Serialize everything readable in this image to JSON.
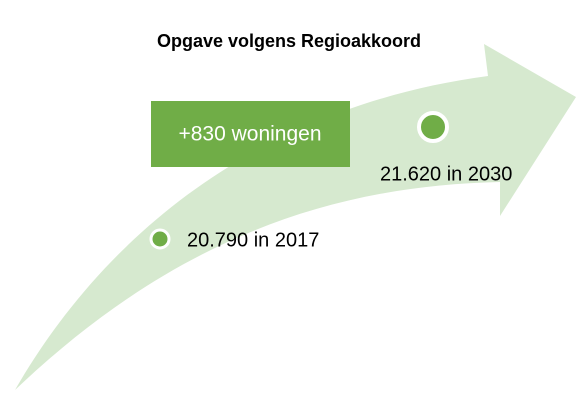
{
  "title": "Opgave volgens Regioakkoord",
  "increase": {
    "label": "+830 woningen"
  },
  "points": [
    {
      "label": "20.790 in 2017"
    },
    {
      "label": "21.620 in 2030"
    }
  ]
}
